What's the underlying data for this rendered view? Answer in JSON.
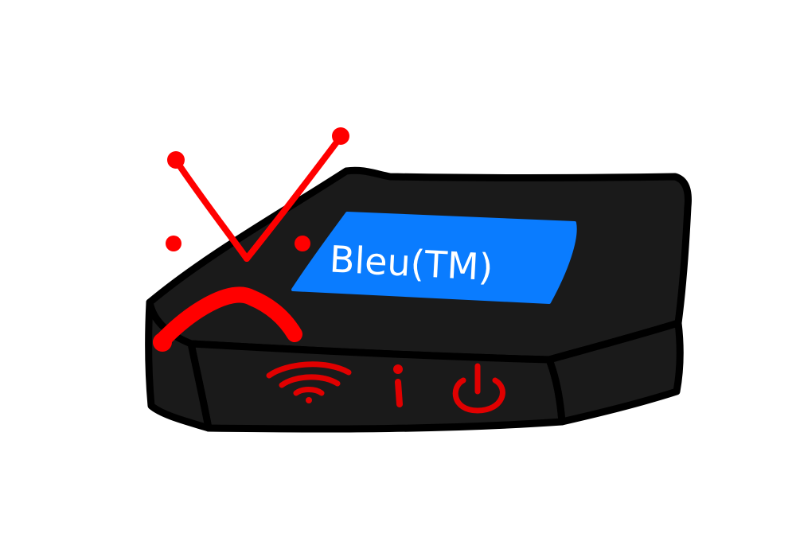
{
  "device": {
    "name": "modem-router",
    "brand_label": "Bleu(TM)",
    "body_color": "#1a1a1a",
    "outline_color": "#000000",
    "label_color": "#0a7cff",
    "label_text_color": "#ffffff",
    "indicator_color": "#e00000",
    "indicators": [
      {
        "icon": "wifi-icon"
      },
      {
        "icon": "info-icon"
      },
      {
        "icon": "power-icon"
      }
    ]
  },
  "face": {
    "expression": "sad",
    "color": "#ff0000"
  }
}
